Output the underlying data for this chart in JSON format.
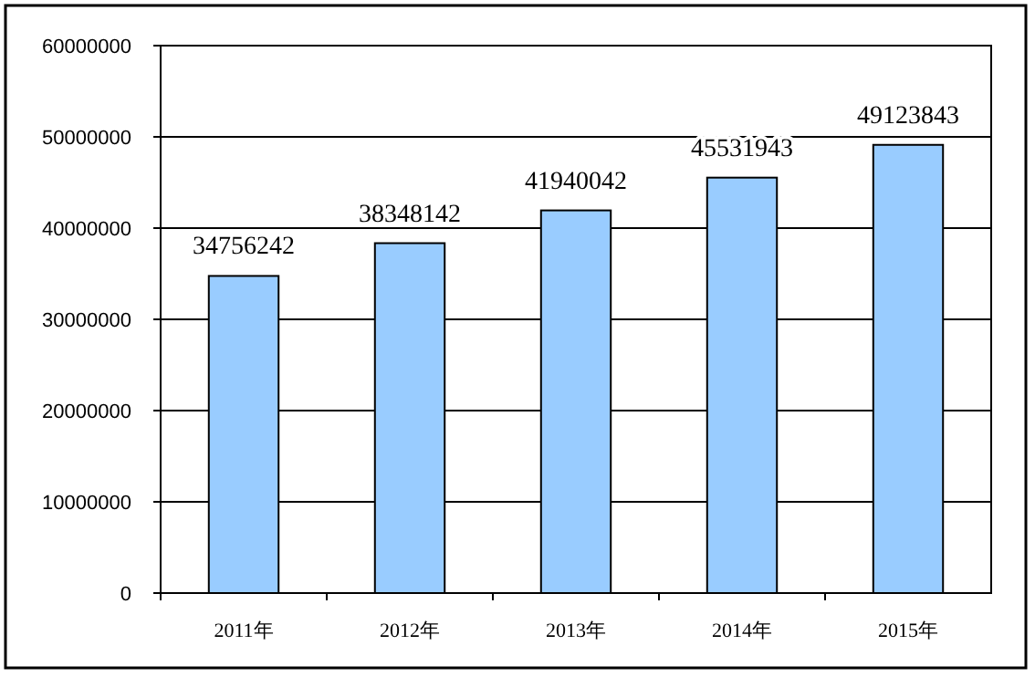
{
  "chart_data": {
    "type": "bar",
    "categories": [
      "2011年",
      "2012年",
      "2013年",
      "2014年",
      "2015年"
    ],
    "values": [
      34756242,
      38348142,
      41940042,
      45531943,
      49123843
    ],
    "color": "#99ccff",
    "ylim": [
      0,
      60000000
    ],
    "yticks": [
      0,
      10000000,
      20000000,
      30000000,
      40000000,
      50000000,
      60000000
    ],
    "grid": "y",
    "data_labels": true
  }
}
